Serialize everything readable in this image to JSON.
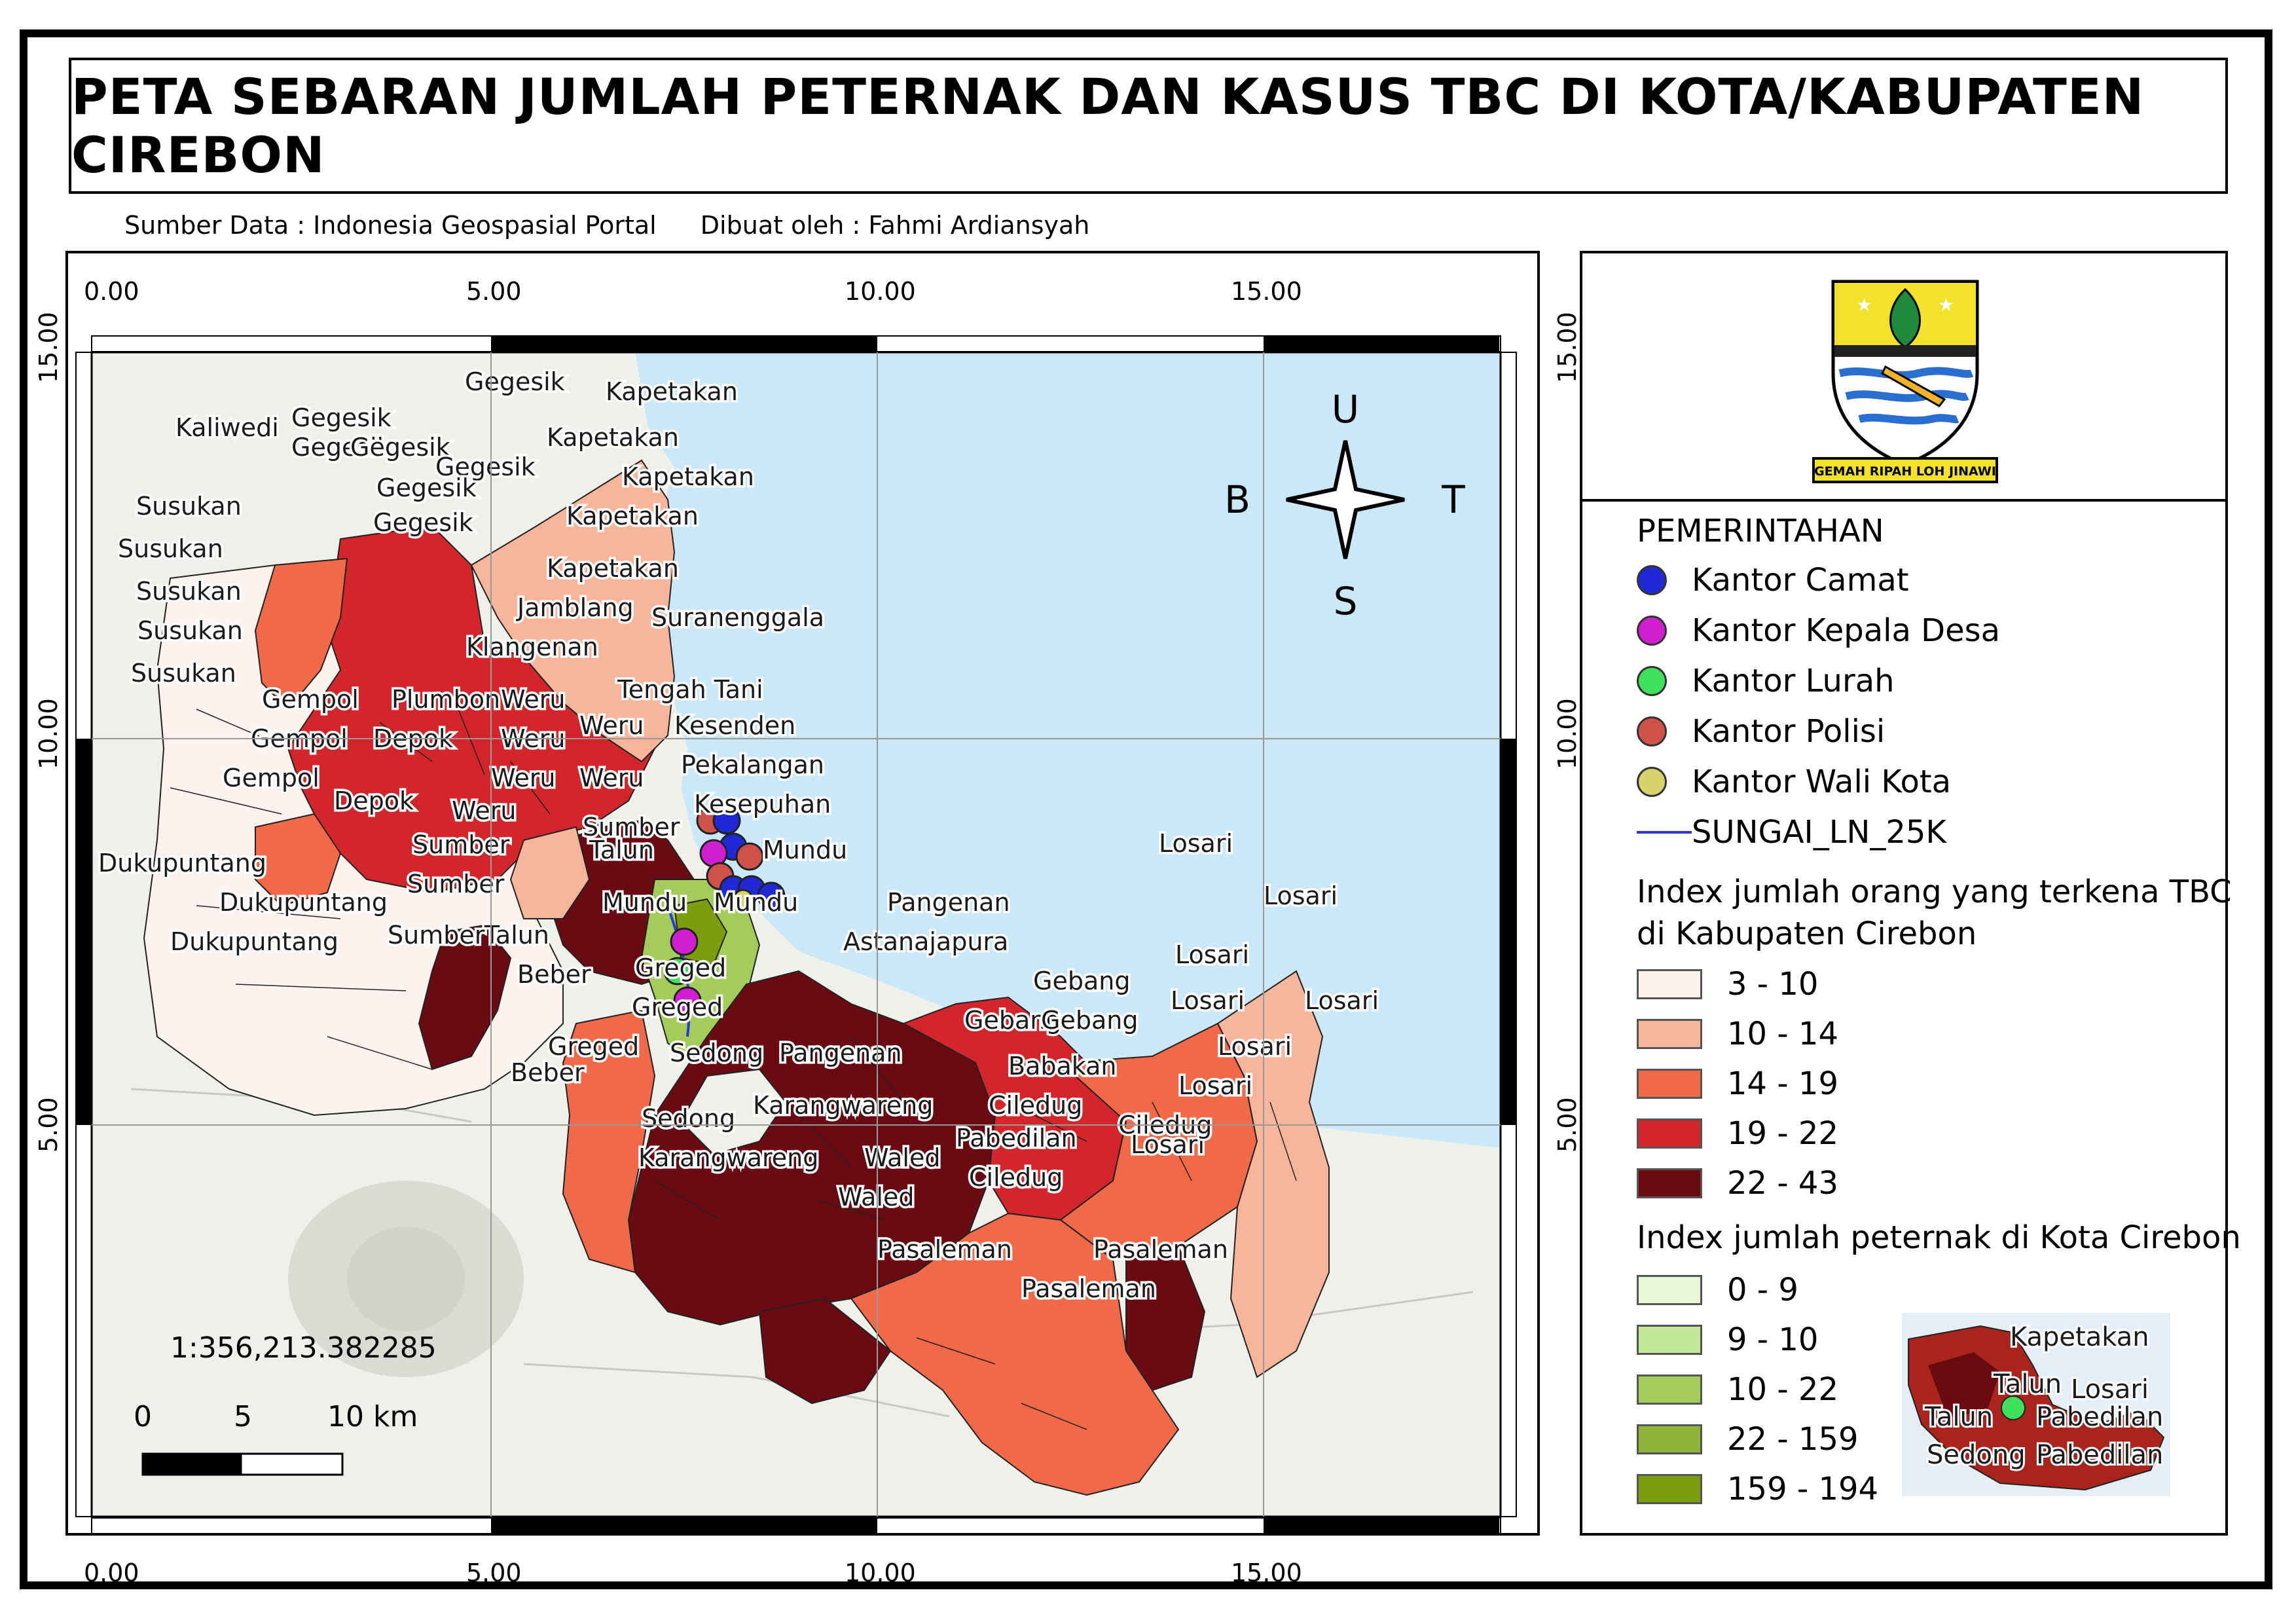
{
  "title": "PETA SEBARAN JUMLAH PETERNAK DAN KASUS TBC DI KOTA/KABUPATEN CIREBON",
  "credits": {
    "source": "Sumber Data : Indonesia Geospasial Portal",
    "author": "Dibuat oleh : Fahmi Ardiansyah"
  },
  "grid": {
    "x_labels": [
      "0.00",
      "5.00",
      "10.00",
      "15.00"
    ],
    "y_labels": [
      "15.00",
      "10.00",
      "5.00"
    ]
  },
  "compass": {
    "north": "U",
    "south": "S",
    "west": "B",
    "east": "T"
  },
  "scale": {
    "ratio": "1:356,213.382285",
    "bar_labels": [
      "0",
      "5",
      "10 km"
    ]
  },
  "logo": {
    "motto": "GEMAH RIPAH LOH JINAWI"
  },
  "legend": {
    "government_heading": "PEMERINTAHAN",
    "points": [
      {
        "label": "Kantor Camat",
        "color": "#1f2ad6"
      },
      {
        "label": "Kantor Kepala Desa",
        "color": "#d01fd0"
      },
      {
        "label": "Kantor Lurah",
        "color": "#3fe05a"
      },
      {
        "label": "Kantor Polisi",
        "color": "#d0504a"
      },
      {
        "label": "Kantor Wali Kota",
        "color": "#d6d36a"
      }
    ],
    "river_label": "SUNGAI_LN_25K",
    "river_color": "#2a3bd0",
    "tbc_heading_line1": "Index jumlah orang yang terkena TBC",
    "tbc_heading_line2": "di Kabupaten Cirebon",
    "tbc_classes": [
      {
        "label": "3 - 10",
        "color": "#fdf2ee"
      },
      {
        "label": "10 - 14",
        "color": "#f7b59b"
      },
      {
        "label": "14 - 19",
        "color": "#f06a4a"
      },
      {
        "label": "19 - 22",
        "color": "#d3262a"
      },
      {
        "label": "22 - 43",
        "color": "#6a0a12"
      }
    ],
    "farmer_heading": "Index jumlah peternak di Kota Cirebon",
    "farmer_classes": [
      {
        "label": "0 - 9",
        "color": "#e6f8d8"
      },
      {
        "label": "9 - 10",
        "color": "#c4e89a"
      },
      {
        "label": "10 - 22",
        "color": "#a3cc5c"
      },
      {
        "label": "22 - 159",
        "color": "#8fb43a"
      },
      {
        "label": "159 - 194",
        "color": "#7a9e10"
      }
    ]
  },
  "inset_labels": [
    "Kapetakan",
    "Talun",
    "Losari",
    "Talun",
    "Pabedilan",
    "Sedong",
    "Pabedilan"
  ],
  "place_labels": [
    "Gegesik",
    "Gegesik",
    "Kaliwedi",
    "Gegesik",
    "Gegesik",
    "Gegesik",
    "Gegesik",
    "Gegesik",
    "Kapetakan",
    "Kapetakan",
    "Kapetakan",
    "Kapetakan",
    "Kapetakan",
    "Susukan",
    "Susukan",
    "Susukan",
    "Susukan",
    "Susukan",
    "Jamblang",
    "Suranenggala",
    "Klangenan",
    "Tengah Tani",
    "Plumbon",
    "Gempol",
    "Gempol",
    "Gempol",
    "Depok",
    "Depok",
    "Weru",
    "Weru",
    "Weru",
    "Weru",
    "Weru",
    "Weru",
    "Kesenden",
    "Pekalangan",
    "Kesepuhan",
    "Sumber",
    "Sumber",
    "Sumber",
    "Sumber",
    "Talun",
    "Talun",
    "Mundu",
    "Mundu",
    "Mundu",
    "Dukupuntang",
    "Dukupuntang",
    "Dukupuntang",
    "Pangenan",
    "Astanajapura",
    "Losari",
    "Losari",
    "Losari",
    "Losari",
    "Losari",
    "Losari",
    "Losari",
    "Losari",
    "Gebang",
    "Gebang",
    "Gebang",
    "Beber",
    "Beber",
    "Greged",
    "Greged",
    "Greged",
    "Sedong",
    "Sedong",
    "Pangenan",
    "Babakan",
    "Ciledug",
    "Ciledug",
    "Ciledug",
    "Karangwareng",
    "Karangwareng",
    "Pabedilan",
    "Waled",
    "Waled",
    "Pasaleman",
    "Pasaleman",
    "Pasaleman"
  ]
}
